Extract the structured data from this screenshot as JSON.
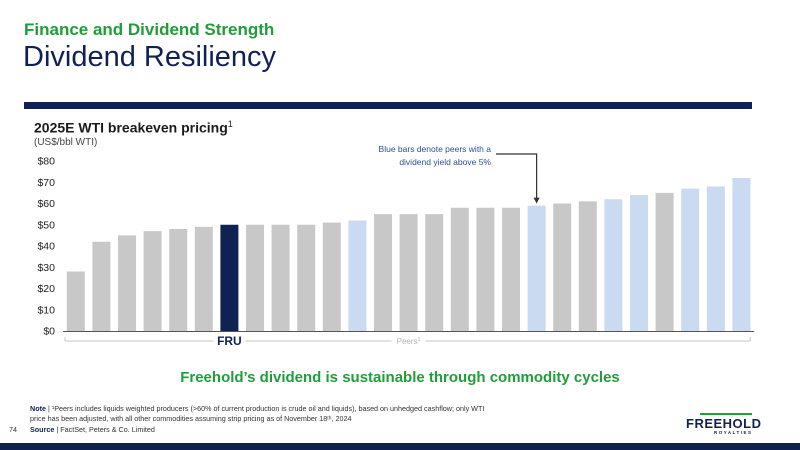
{
  "header": {
    "kicker": "Finance and Dividend Strength",
    "title": "Dividend Resiliency"
  },
  "chart_data": {
    "type": "bar",
    "title": "2025E WTI breakeven pricing",
    "title_superscript": "1",
    "unit_label": "(US$/bbl WTI)",
    "ylim": [
      0,
      80
    ],
    "yticks": [
      "$0",
      "$10",
      "$20",
      "$30",
      "$40",
      "$50",
      "$60",
      "$70",
      "$80"
    ],
    "values": [
      28,
      42,
      45,
      47,
      48,
      49,
      50,
      50,
      50,
      50,
      51,
      52,
      55,
      55,
      55,
      58,
      58,
      58,
      59,
      60,
      61,
      62,
      64,
      65,
      67,
      68,
      72
    ],
    "bar_groups": [
      "peer",
      "peer",
      "peer",
      "peer",
      "peer",
      "peer",
      "fru",
      "peer",
      "peer",
      "peer",
      "peer",
      "peer_high_yield",
      "peer",
      "peer",
      "peer",
      "peer",
      "peer",
      "peer",
      "peer_high_yield",
      "peer",
      "peer",
      "peer_high_yield",
      "peer_high_yield",
      "peer",
      "peer_high_yield",
      "peer_high_yield",
      "peer_high_yield"
    ],
    "colors": {
      "fru": "#0f2252",
      "peer": "#c8c8c8",
      "peer_high_yield": "#c9daf1"
    },
    "grid": false,
    "x_labels": {
      "fru": "FRU",
      "peers": "Peers",
      "peers_superscript": "1"
    },
    "annotation": {
      "line1": "Blue bars denote peers with a",
      "line2": "dividend yield above 5%"
    }
  },
  "takeaway": "Freehold’s dividend is sustainable through commodity cycles",
  "footer": {
    "note_label": "Note",
    "note_text": " | ¹Peers includes liquids weighted producers (>60% of current production is crude oil and liquids), based on unhedged cashflow; only WTI price has been adjusted, with all other commodities assuming strip pricing as of November 18ᵗʰ, 2024",
    "source_label": "Source",
    "source_text": " | FactSet, Peters & Co. Limited",
    "page_number": "74",
    "logo_word": "FREEHOLD",
    "logo_sub": "ROYALTIES"
  }
}
